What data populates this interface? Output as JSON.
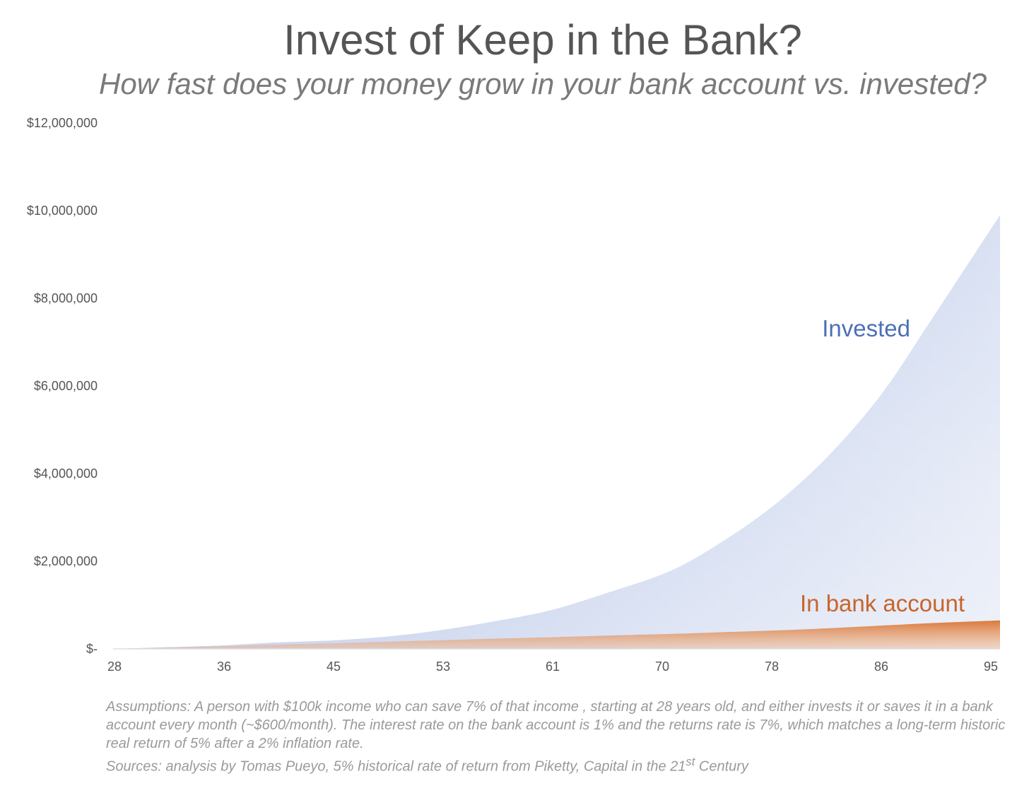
{
  "chart_data": {
    "type": "area",
    "title": "Invest of Keep in the Bank?",
    "subtitle": "How fast does your money grow in your bank account vs. invested?",
    "xlabel": "",
    "ylabel": "",
    "x_tick_labels": [
      "28",
      "36",
      "45",
      "53",
      "61",
      "70",
      "78",
      "86",
      "95"
    ],
    "y_tick_labels": [
      "$-",
      "$2,000,000",
      "$4,000,000",
      "$6,000,000",
      "$8,000,000",
      "$10,000,000",
      "$12,000,000"
    ],
    "xlim": [
      28,
      95
    ],
    "ylim": [
      0,
      12000000
    ],
    "grid": false,
    "legend": "none",
    "x": [
      28,
      32,
      36,
      40,
      45,
      49,
      53,
      57,
      61,
      65,
      70,
      74,
      78,
      82,
      86,
      90,
      95
    ],
    "series": [
      {
        "name": "Invested",
        "color": "#4d6fb8",
        "values": [
          0,
          35000,
          75000,
          140000,
          200000,
          290000,
          440000,
          640000,
          880000,
          1250000,
          1770000,
          2450000,
          3300000,
          4400000,
          5800000,
          7600000,
          9900000
        ]
      },
      {
        "name": "In bank account",
        "color": "#c8652a",
        "values": [
          0,
          30000,
          62000,
          95000,
          130000,
          165000,
          200000,
          235000,
          265000,
          300000,
          340000,
          380000,
          420000,
          470000,
          530000,
          590000,
          650000
        ]
      }
    ]
  },
  "footnotes": {
    "assumptions": "Assumptions: A person with $100k income who can save 7% of that income , starting at 28 years old, and either invests it or saves it in a bank account every month (~$600/month). The interest rate on the bank account is 1% and the returns rate is 7%, which matches a long-term historic real return of 5% after a 2% inflation rate.",
    "sources_prefix": "Sources: analysis by Tomas Pueyo, 5% historical rate of return from Piketty, Capital in the 21",
    "sources_sup": "st",
    "sources_suffix": " Century"
  }
}
